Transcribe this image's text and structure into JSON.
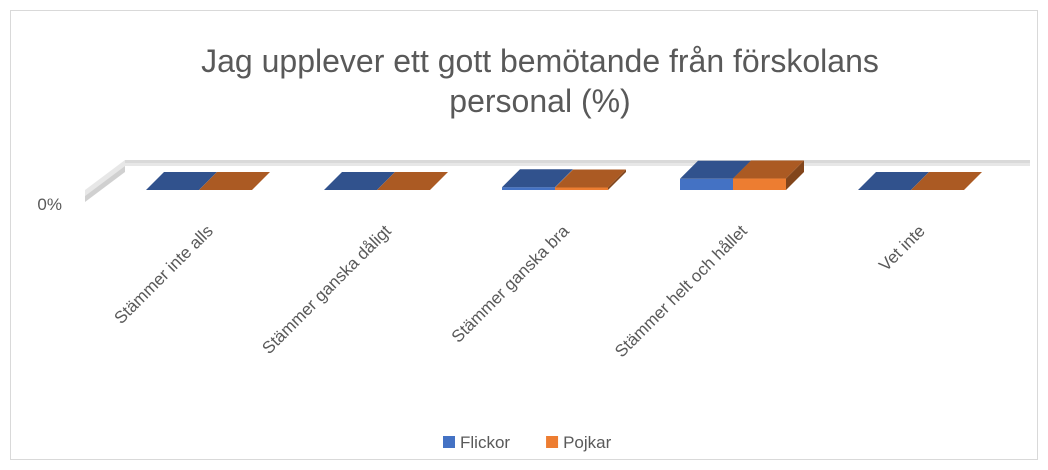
{
  "chart_data": {
    "type": "bar3d",
    "title": [
      "Jag upplever ett gott bemötande från förskolans",
      "personal (%)"
    ],
    "categories": [
      "Stämmer inte alls",
      "Stämmer ganska dåligt",
      "Stämmer ganska bra",
      "Stämmer helt och hållet",
      "Vet inte"
    ],
    "series": [
      {
        "name": "Flickor",
        "color": "#4472c4",
        "values": [
          0,
          0,
          20,
          80,
          0
        ]
      },
      {
        "name": "Pojkar",
        "color": "#ed7d31",
        "values": [
          0,
          0,
          18,
          82,
          0
        ]
      }
    ],
    "ylim": [
      0,
      200
    ],
    "yticks": [
      {
        "value": 0,
        "label": "0%"
      }
    ],
    "legend": "bottom"
  }
}
